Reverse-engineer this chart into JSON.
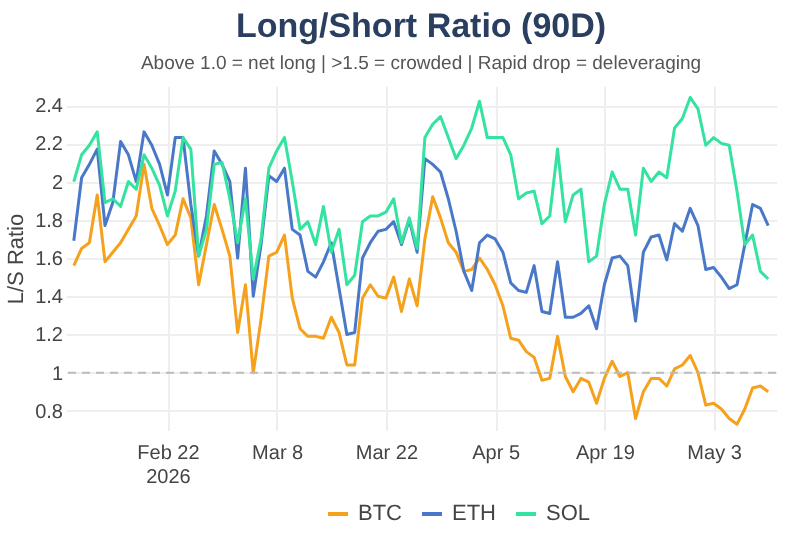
{
  "chart_data": {
    "type": "line",
    "title": "Long/Short Ratio (90D)",
    "subtitle": "Above 1.0 = net long | >1.5 = crowded | Rapid drop = deleveraging",
    "ylabel": "L/S Ratio",
    "x": [
      "2026-02-10",
      "2026-02-11",
      "2026-02-12",
      "2026-02-13",
      "2026-02-14",
      "2026-02-15",
      "2026-02-16",
      "2026-02-17",
      "2026-02-18",
      "2026-02-19",
      "2026-02-20",
      "2026-02-21",
      "2026-02-22",
      "2026-02-23",
      "2026-02-24",
      "2026-02-25",
      "2026-02-26",
      "2026-02-27",
      "2026-02-28",
      "2026-03-01",
      "2026-03-02",
      "2026-03-03",
      "2026-03-04",
      "2026-03-05",
      "2026-03-06",
      "2026-03-07",
      "2026-03-08",
      "2026-03-09",
      "2026-03-10",
      "2026-03-11",
      "2026-03-12",
      "2026-03-13",
      "2026-03-14",
      "2026-03-15",
      "2026-03-16",
      "2026-03-17",
      "2026-03-18",
      "2026-03-19",
      "2026-03-20",
      "2026-03-21",
      "2026-03-22",
      "2026-03-23",
      "2026-03-24",
      "2026-03-25",
      "2026-03-26",
      "2026-03-27",
      "2026-03-28",
      "2026-03-29",
      "2026-03-30",
      "2026-03-31",
      "2026-04-01",
      "2026-04-02",
      "2026-04-03",
      "2026-04-04",
      "2026-04-05",
      "2026-04-06",
      "2026-04-07",
      "2026-04-08",
      "2026-04-09",
      "2026-04-10",
      "2026-04-11",
      "2026-04-12",
      "2026-04-13",
      "2026-04-14",
      "2026-04-15",
      "2026-04-16",
      "2026-04-17",
      "2026-04-18",
      "2026-04-19",
      "2026-04-20",
      "2026-04-21",
      "2026-04-22",
      "2026-04-23",
      "2026-04-24",
      "2026-04-25",
      "2026-04-26",
      "2026-04-27",
      "2026-04-28",
      "2026-04-29",
      "2026-04-30",
      "2026-05-01",
      "2026-05-02",
      "2026-05-03",
      "2026-05-04",
      "2026-05-05",
      "2026-05-06",
      "2026-05-07",
      "2026-05-08",
      "2026-05-09",
      "2026-05-10"
    ],
    "series": [
      {
        "name": "BTC",
        "color": "#f5a11c",
        "values": [
          1.56,
          1.65,
          1.68,
          1.93,
          1.58,
          1.63,
          1.68,
          1.75,
          1.82,
          2.09,
          1.86,
          1.77,
          1.67,
          1.72,
          1.91,
          1.81,
          1.46,
          1.67,
          1.88,
          1.75,
          1.61,
          1.21,
          1.46,
          1.0,
          1.28,
          1.61,
          1.63,
          1.72,
          1.39,
          1.23,
          1.19,
          1.19,
          1.18,
          1.29,
          1.21,
          1.04,
          1.04,
          1.39,
          1.46,
          1.4,
          1.39,
          1.5,
          1.32,
          1.49,
          1.35,
          1.7,
          1.92,
          1.81,
          1.68,
          1.63,
          1.53,
          1.54,
          1.6,
          1.54,
          1.46,
          1.35,
          1.18,
          1.17,
          1.11,
          1.08,
          0.96,
          0.97,
          1.19,
          0.98,
          0.9,
          0.97,
          0.95,
          0.84,
          0.97,
          1.06,
          0.98,
          1.0,
          0.76,
          0.9,
          0.97,
          0.97,
          0.93,
          1.02,
          1.04,
          1.09,
          1.0,
          0.83,
          0.84,
          0.81,
          0.76,
          0.73,
          0.81,
          0.92,
          0.93,
          0.9
        ]
      },
      {
        "name": "ETH",
        "color": "#4a78c8",
        "values": [
          1.69,
          2.02,
          2.09,
          2.17,
          1.77,
          1.89,
          2.21,
          2.14,
          2.0,
          2.26,
          2.19,
          2.09,
          1.93,
          2.23,
          2.23,
          1.88,
          1.61,
          1.82,
          2.16,
          2.09,
          2.0,
          1.6,
          2.07,
          1.4,
          1.67,
          2.03,
          2.0,
          2.07,
          1.75,
          1.72,
          1.53,
          1.5,
          1.58,
          1.68,
          1.44,
          1.2,
          1.21,
          1.6,
          1.68,
          1.74,
          1.75,
          1.79,
          1.67,
          1.8,
          1.63,
          2.12,
          2.09,
          2.05,
          1.91,
          1.74,
          1.53,
          1.43,
          1.68,
          1.72,
          1.7,
          1.63,
          1.47,
          1.43,
          1.42,
          1.56,
          1.32,
          1.31,
          1.58,
          1.29,
          1.29,
          1.31,
          1.35,
          1.23,
          1.46,
          1.6,
          1.61,
          1.56,
          1.27,
          1.63,
          1.71,
          1.72,
          1.59,
          1.78,
          1.74,
          1.86,
          1.77,
          1.54,
          1.55,
          1.5,
          1.44,
          1.46,
          1.67,
          1.88,
          1.86,
          1.77
        ]
      },
      {
        "name": "SOL",
        "color": "#33e39f",
        "values": [
          2.0,
          2.14,
          2.19,
          2.26,
          1.89,
          1.91,
          1.87,
          2.0,
          1.96,
          2.14,
          2.07,
          1.98,
          1.82,
          1.95,
          2.23,
          2.17,
          1.61,
          1.75,
          2.09,
          2.1,
          1.91,
          1.68,
          1.91,
          1.49,
          1.7,
          2.07,
          2.16,
          2.23,
          2.0,
          1.75,
          1.79,
          1.67,
          1.87,
          1.63,
          1.75,
          1.46,
          1.51,
          1.79,
          1.82,
          1.82,
          1.84,
          1.91,
          1.68,
          1.81,
          1.65,
          2.23,
          2.3,
          2.34,
          2.23,
          2.12,
          2.19,
          2.28,
          2.42,
          2.23,
          2.23,
          2.23,
          2.14,
          1.91,
          1.94,
          1.95,
          1.78,
          1.82,
          2.17,
          1.79,
          1.93,
          1.96,
          1.58,
          1.61,
          1.88,
          2.05,
          1.96,
          1.96,
          1.72,
          2.07,
          2.0,
          2.05,
          2.02,
          2.28,
          2.33,
          2.44,
          2.38,
          2.19,
          2.23,
          2.2,
          2.19,
          1.95,
          1.67,
          1.72,
          1.53,
          1.49
        ]
      }
    ],
    "xlim": [
      "2026-02-09",
      "2026-05-11"
    ],
    "xticks": [
      {
        "value": "2026-02-22",
        "label": "Feb 22\n2026"
      },
      {
        "value": "2026-03-08",
        "label": "Mar 8"
      },
      {
        "value": "2026-03-22",
        "label": "Mar 22"
      },
      {
        "value": "2026-04-05",
        "label": "Apr 5"
      },
      {
        "value": "2026-04-19",
        "label": "Apr 19"
      },
      {
        "value": "2026-05-03",
        "label": "May 3"
      }
    ],
    "ylim": [
      0.7,
      2.5
    ],
    "yticks": [
      0.8,
      1,
      1.2,
      1.4,
      1.6,
      1.8,
      2,
      2.2,
      2.4
    ],
    "ref_lines": [
      {
        "axis": "y",
        "value": 1,
        "color": "#bbbbbb",
        "line_style": "dashed"
      }
    ],
    "grid": true,
    "legend": "bottom"
  }
}
